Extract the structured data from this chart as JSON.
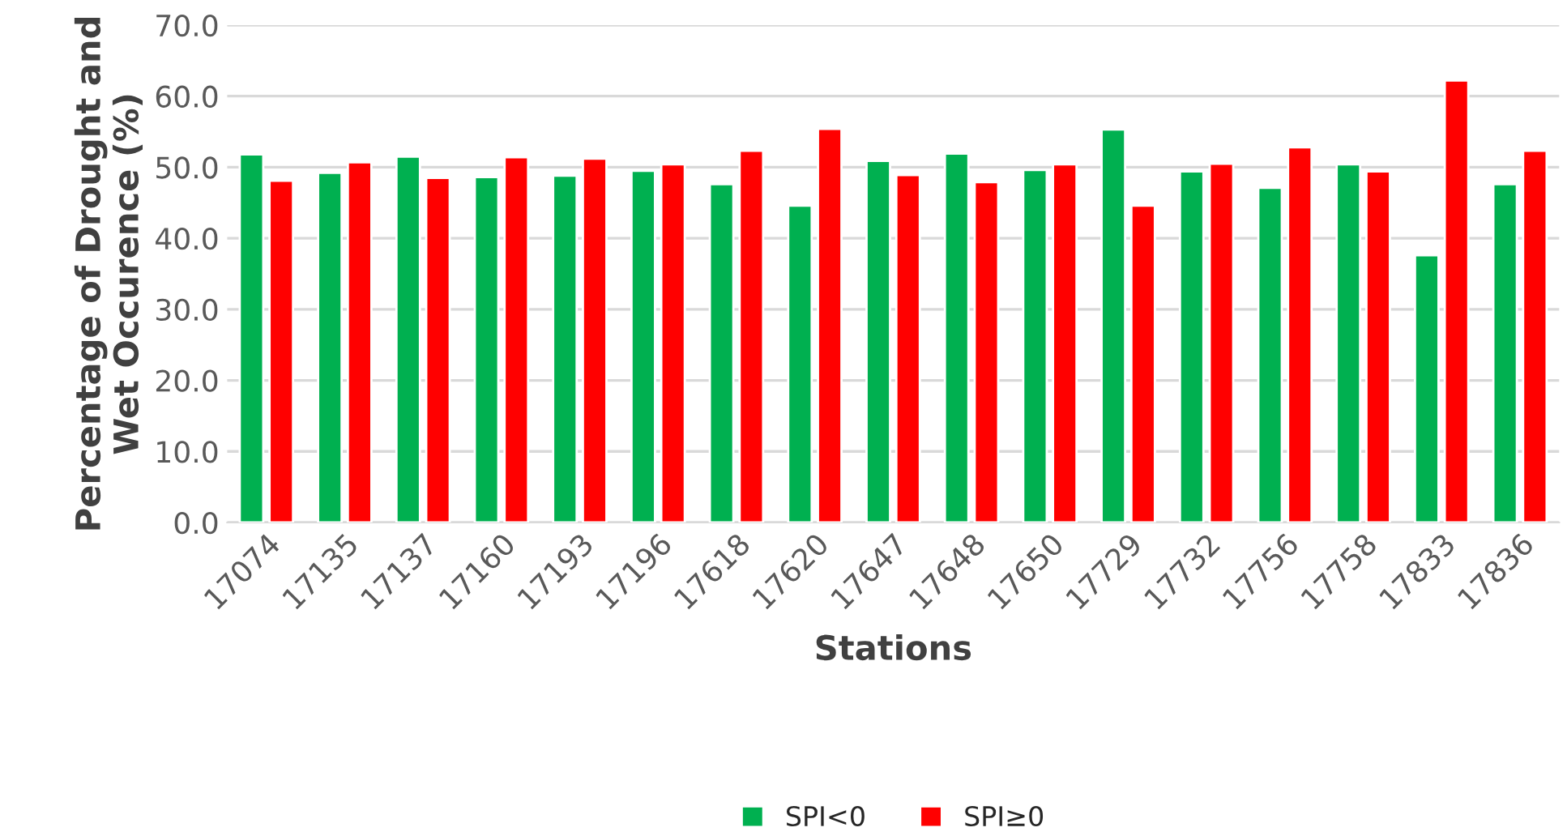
{
  "chart_data": {
    "type": "bar",
    "xlabel": "Stations",
    "ylabel": "Percentage of Drought and Wet Occurence (%)",
    "categories": [
      "17074",
      "17135",
      "17137",
      "17160",
      "17193",
      "17196",
      "17618",
      "17620",
      "17647",
      "17648",
      "17650",
      "17729",
      "17732",
      "17756",
      "17758",
      "17833",
      "17836"
    ],
    "series": [
      {
        "name": "SPI<0",
        "color": "#00b050",
        "values": [
          51.8,
          49.2,
          51.5,
          48.6,
          48.8,
          49.5,
          47.6,
          44.6,
          50.9,
          51.9,
          49.6,
          55.3,
          49.4,
          47.1,
          50.4,
          37.6,
          47.6
        ]
      },
      {
        "name": "SPI≥0",
        "color": "#ff0000",
        "values": [
          48.1,
          50.7,
          48.5,
          51.4,
          51.2,
          50.4,
          52.3,
          55.4,
          48.9,
          47.9,
          50.4,
          44.6,
          50.5,
          52.8,
          49.4,
          62.2,
          52.3
        ]
      }
    ],
    "ylim": [
      0,
      70
    ],
    "yticks": [
      {
        "value": 0,
        "label": "0.0"
      },
      {
        "value": 10,
        "label": "10.0"
      },
      {
        "value": 20,
        "label": "20.0"
      },
      {
        "value": 30,
        "label": "30.0"
      },
      {
        "value": 40,
        "label": "40.0"
      },
      {
        "value": 50,
        "label": "50.0"
      },
      {
        "value": 60,
        "label": "60.0"
      },
      {
        "value": 70,
        "label": "70.0"
      }
    ],
    "grid": "y",
    "legend": "bottom"
  }
}
